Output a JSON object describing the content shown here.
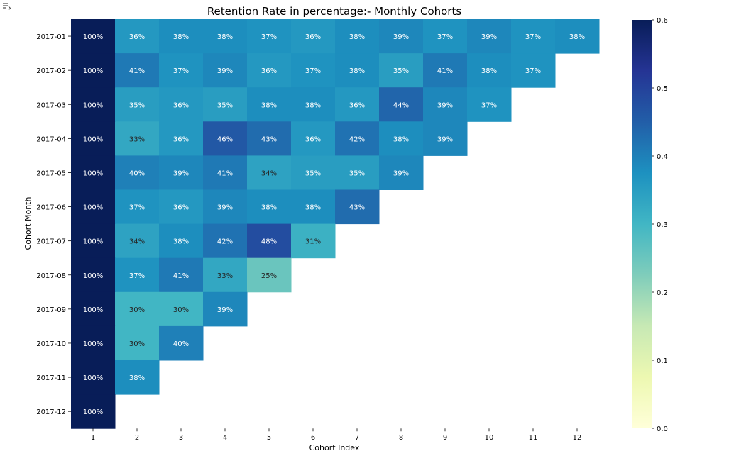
{
  "chart_data": {
    "type": "heatmap",
    "title": "Retention Rate in percentage:- Monthly Cohorts",
    "xlabel": "Cohort Index",
    "ylabel": "Cohort Month",
    "x_categories": [
      "1",
      "2",
      "3",
      "4",
      "5",
      "6",
      "7",
      "8",
      "9",
      "10",
      "11",
      "12"
    ],
    "y_categories": [
      "2017-01",
      "2017-02",
      "2017-03",
      "2017-04",
      "2017-05",
      "2017-06",
      "2017-07",
      "2017-08",
      "2017-09",
      "2017-10",
      "2017-11",
      "2017-12"
    ],
    "values": [
      [
        100,
        36,
        38,
        38,
        37,
        36,
        38,
        39,
        37,
        39,
        37,
        38
      ],
      [
        100,
        41,
        37,
        39,
        36,
        37,
        38,
        35,
        41,
        38,
        37
      ],
      [
        100,
        35,
        36,
        35,
        38,
        38,
        36,
        44,
        39,
        37
      ],
      [
        100,
        33,
        36,
        46,
        43,
        36,
        42,
        38,
        39
      ],
      [
        100,
        40,
        39,
        41,
        34,
        35,
        35,
        39
      ],
      [
        100,
        37,
        36,
        39,
        38,
        38,
        43
      ],
      [
        100,
        34,
        38,
        42,
        48,
        31
      ],
      [
        100,
        37,
        41,
        33,
        25
      ],
      [
        100,
        30,
        30,
        39
      ],
      [
        100,
        30,
        40
      ],
      [
        100,
        38
      ],
      [
        100
      ]
    ],
    "value_format": "percent",
    "colormap": "YlGnBu",
    "colorbar": {
      "range": [
        0.0,
        0.6
      ],
      "ticks": [
        "0.0",
        "0.1",
        "0.2",
        "0.3",
        "0.4",
        "0.5",
        "0.6"
      ]
    },
    "grid": false,
    "legend": "colorbar-right"
  },
  "toolbar": {
    "icon": "output-toggle-icon"
  }
}
